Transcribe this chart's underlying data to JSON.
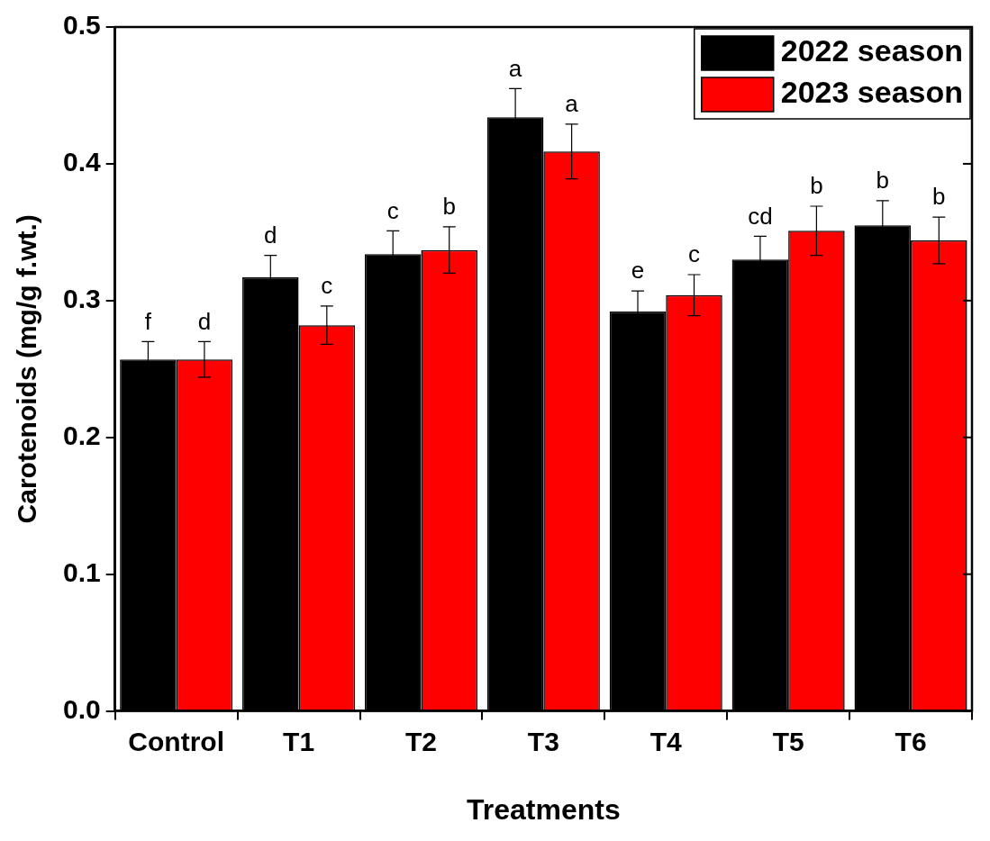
{
  "chart_data": {
    "type": "bar",
    "xlabel": "Treatments",
    "ylabel": "Carotenoids (mg/g f.wt.)",
    "categories": [
      "Control",
      "T1",
      "T2",
      "T3",
      "T4",
      "T5",
      "T6"
    ],
    "series": [
      {
        "name": "2022 season",
        "color": "#000000",
        "values": [
          0.257,
          0.317,
          0.334,
          0.434,
          0.292,
          0.33,
          0.355
        ],
        "errors": [
          0.013,
          0.016,
          0.017,
          0.021,
          0.015,
          0.017,
          0.018
        ],
        "value_labels": [
          "f",
          "d",
          "c",
          "a",
          "e",
          "cd",
          "b"
        ]
      },
      {
        "name": "2023 season",
        "color": "#ff0000",
        "values": [
          0.257,
          0.282,
          0.337,
          0.409,
          0.304,
          0.351,
          0.344
        ],
        "errors": [
          0.013,
          0.014,
          0.017,
          0.02,
          0.015,
          0.018,
          0.017
        ],
        "value_labels": [
          "d",
          "c",
          "b",
          "a",
          "c",
          "b",
          "b"
        ]
      }
    ],
    "ylim": [
      0,
      0.5
    ],
    "yticks": [
      {
        "value": 0,
        "label": "0.0"
      },
      0.1,
      0.2,
      0.3,
      0.4,
      0.5
    ],
    "grid": false,
    "legend": "top right"
  }
}
